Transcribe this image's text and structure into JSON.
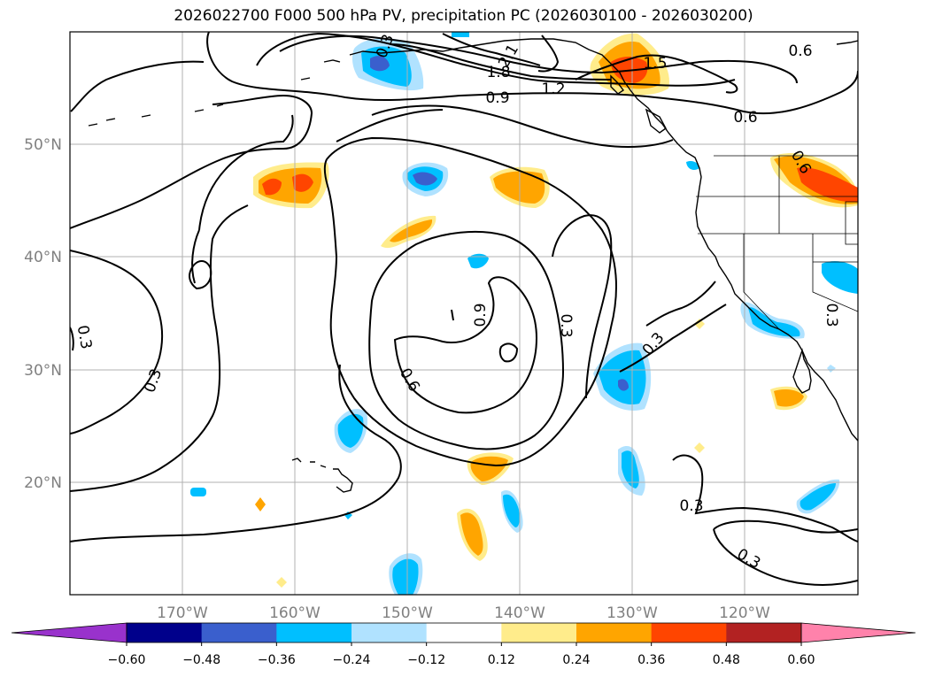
{
  "title": "2026022700 F000 500 hPa PV, precipitation PC (2026030100 - 2026030200)",
  "lat_labels": [
    "50°N",
    "40°N",
    "30°N",
    "20°N"
  ],
  "lon_labels": [
    "170°W",
    "160°W",
    "150°W",
    "140°W",
    "130°W",
    "120°W"
  ],
  "contour_labels": {
    "c1": "2.1",
    "c2": "1.8",
    "c3": "1.5",
    "c4": "1.2",
    "c5": "0.9",
    "c6": "0.6",
    "c7": "0.6",
    "c8": "0.6",
    "c9": "0.3",
    "c10": "0.3",
    "c11": "0.3",
    "c12": "0.9",
    "c13": "0.6",
    "c14": "0.3",
    "c15": "0.3",
    "c16": "0.3",
    "c17": "0.3",
    "c18": "0.3"
  },
  "colorbar": {
    "ticks": [
      "−0.60",
      "−0.48",
      "−0.36",
      "−0.24",
      "−0.12",
      "0.12",
      "0.24",
      "0.36",
      "0.48",
      "0.60"
    ],
    "colors": [
      "#9932cc",
      "#00008b",
      "#3a5fcd",
      "#00bfff",
      "#b0e2ff",
      "#ffffff",
      "#ffec8b",
      "#ffa500",
      "#ff4500",
      "#b22222",
      "#ff82ab"
    ]
  },
  "palette": {
    "blue_light": "#b0e2ff",
    "blue_mid": "#00bfff",
    "blue_dark": "#3a5fcd",
    "yellow": "#ffec8b",
    "orange": "#ffa500",
    "red": "#ff4500"
  }
}
